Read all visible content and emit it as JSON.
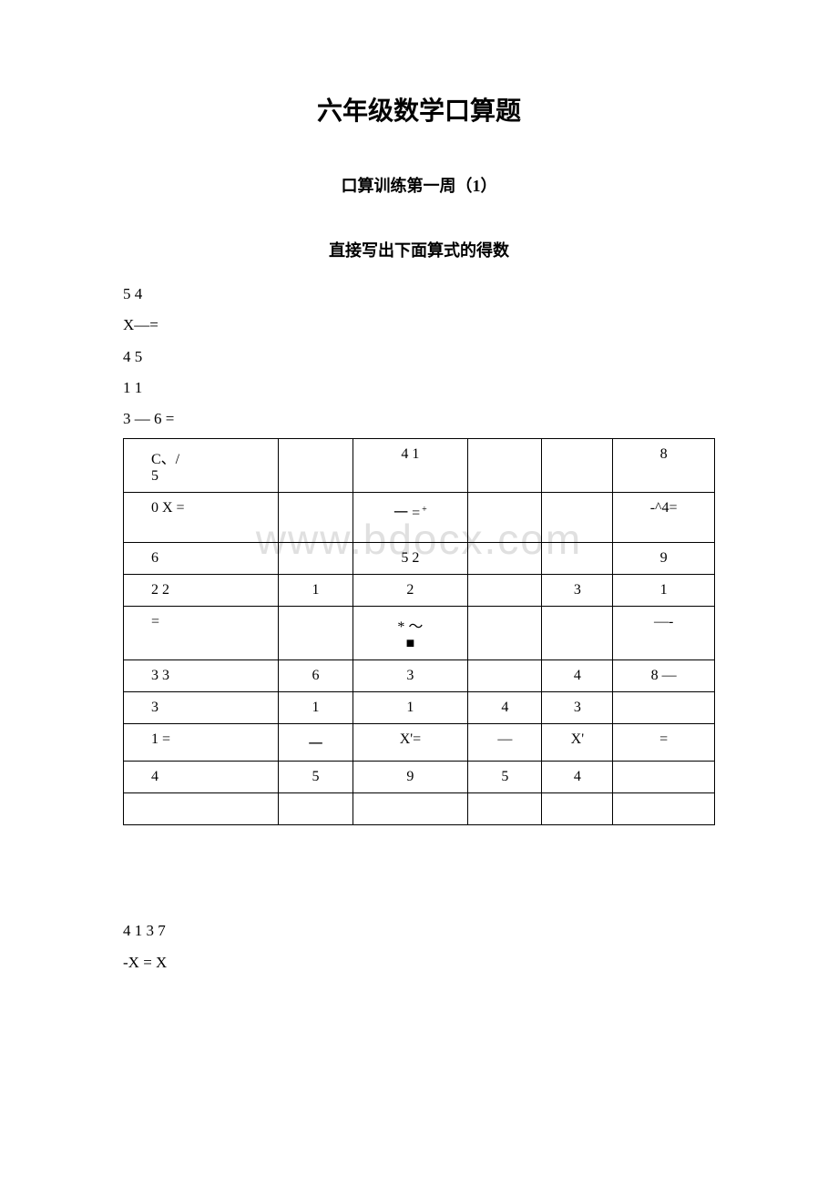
{
  "title": "六年级数学口算题",
  "subtitle": "口算训练第一周（1）",
  "instruction": "直接写出下面算式的得数",
  "watermark": "www.bdocx.com",
  "pre_table": {
    "line1": "5 4",
    "line2": "X—=",
    "line3": "4 5",
    "line4": "1 1",
    "line5": "3 — 6 ="
  },
  "table": {
    "rows": [
      [
        "C、/\n5",
        "",
        "4 1",
        "",
        "",
        "8"
      ],
      [
        "0 X =",
        "",
        "一 =",
        "",
        "",
        "-^4="
      ],
      [
        "6",
        "",
        "5 2",
        "",
        "",
        "9"
      ],
      [
        "2 2",
        "1",
        "2",
        "",
        "3",
        "1"
      ],
      [
        "=",
        "",
        "* ～\n■",
        "",
        "",
        "—-"
      ],
      [
        "3 3",
        "6",
        "3",
        "",
        "4",
        "8 —"
      ],
      [
        "3",
        "1",
        "1",
        "4",
        "3",
        ""
      ],
      [
        "1 =",
        "一",
        "X'=",
        "—",
        "X'",
        "="
      ],
      [
        "4",
        "5",
        "9",
        "5",
        "4",
        ""
      ],
      [
        "",
        "",
        "",
        "",
        "",
        ""
      ]
    ],
    "row_heights": [
      "tall",
      "tall",
      "",
      "",
      "tall",
      "",
      "",
      "",
      "",
      ""
    ],
    "r1c2_sup": "+"
  },
  "post_table": {
    "line1": "4 1 3 7",
    "line2": "-X = X"
  },
  "colors": {
    "background": "#ffffff",
    "text": "#000000",
    "border": "#000000",
    "watermark": "#e0e0e0"
  }
}
